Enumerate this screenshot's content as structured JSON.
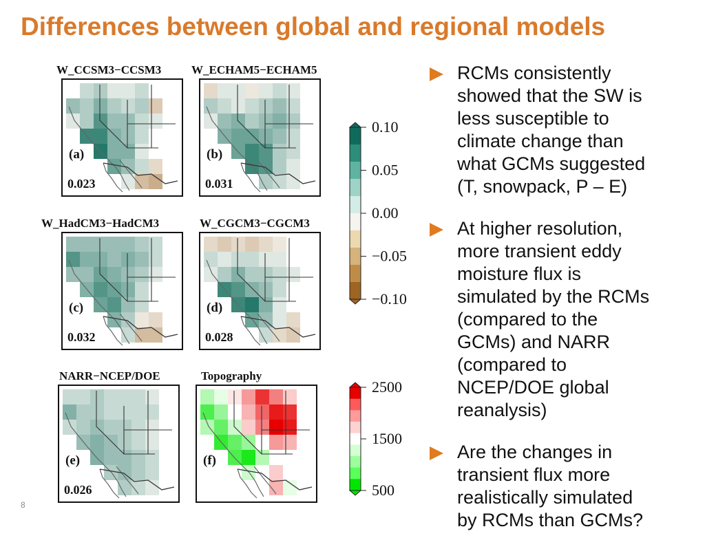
{
  "slide": {
    "title": "Differences between global and regional models",
    "page_number": "8"
  },
  "panels": [
    {
      "header": "W_CCSM3−CCSM3",
      "letter": "(a)",
      "value": "0.023",
      "palette": "diff",
      "grid": [
        [
          0,
          0.02,
          0.03,
          0.01,
          0.01,
          0.02,
          0
        ],
        [
          0.04,
          0.03,
          0.05,
          0.03,
          0.02,
          0.03,
          -0.03
        ],
        [
          0.01,
          0.03,
          0.07,
          0.04,
          0.04,
          0.02,
          0.01
        ],
        [
          0,
          0.08,
          0.08,
          0.05,
          0.04,
          0.02,
          0
        ],
        [
          0,
          0,
          0.09,
          0.05,
          0.05,
          0.01,
          0
        ],
        [
          0,
          0,
          0,
          0.06,
          0.04,
          0.02,
          -0.02
        ],
        [
          0,
          0,
          0,
          0,
          0.01,
          -0.04,
          -0.05
        ]
      ]
    },
    {
      "header": "W_ECHAM5−ECHAM5",
      "letter": "(b)",
      "value": "0.031",
      "palette": "diff",
      "grid": [
        [
          -0.02,
          0.01,
          0.01,
          -0.01,
          0.01,
          0.02,
          0.01
        ],
        [
          0.03,
          0.02,
          0.01,
          0.02,
          0.03,
          0.04,
          0.02
        ],
        [
          0.01,
          0.04,
          0.05,
          0.03,
          0.04,
          0.05,
          0.03
        ],
        [
          0,
          0.05,
          0.06,
          0.06,
          0.05,
          0.04,
          0.02
        ],
        [
          0,
          0,
          0.06,
          0.08,
          0.07,
          0.03,
          0.02
        ],
        [
          0,
          0,
          0,
          0.08,
          0.07,
          0.03,
          0.01
        ],
        [
          0,
          0,
          0,
          0,
          0.03,
          0.02,
          0.01
        ]
      ]
    },
    {
      "header": "W_HadCM3−HadCM3",
      "letter": "(c)",
      "value": "0.032",
      "palette": "diff",
      "grid": [
        [
          0.04,
          0.04,
          0.04,
          0.04,
          0.04,
          0.03,
          0.02
        ],
        [
          0.07,
          0.05,
          0.05,
          0.04,
          0.05,
          0.04,
          0.02
        ],
        [
          0.04,
          0.04,
          0.06,
          0.05,
          0.04,
          0.03,
          0.01
        ],
        [
          0,
          0.05,
          0.07,
          0.06,
          0.05,
          0.02,
          0
        ],
        [
          0,
          0,
          0.06,
          0.07,
          0.04,
          0.02,
          0
        ],
        [
          0,
          0,
          0,
          0.05,
          0.03,
          -0.01,
          -0.02
        ],
        [
          0,
          0,
          0,
          0,
          0.02,
          -0.04,
          -0.04
        ]
      ]
    },
    {
      "header": "W_CGCM3−CGCM3",
      "letter": "(d)",
      "value": "0.028",
      "palette": "diff",
      "grid": [
        [
          -0.02,
          -0.03,
          -0.02,
          -0.03,
          -0.02,
          -0.01,
          0
        ],
        [
          0.02,
          0.01,
          0.02,
          0.02,
          0.01,
          0.01,
          0
        ],
        [
          0.01,
          0.03,
          0.05,
          0.03,
          0.03,
          0.02,
          0.01
        ],
        [
          0,
          0.08,
          0.07,
          0.05,
          0.04,
          0.02,
          0
        ],
        [
          0,
          0,
          0.08,
          0.09,
          0.05,
          0.01,
          0
        ],
        [
          0,
          0,
          0,
          0.06,
          0.04,
          0.01,
          -0.02
        ],
        [
          0,
          0,
          0,
          0,
          0.02,
          -0.02,
          -0.03
        ]
      ]
    },
    {
      "header": "NARR−NCEP/DOE",
      "letter": "(e)",
      "value": "0.026",
      "palette": "diff",
      "grid": [
        [
          0.02,
          0.02,
          0.03,
          0.02,
          0.02,
          0.02,
          0.01
        ],
        [
          0.05,
          0.03,
          0.03,
          0.02,
          0.02,
          0.02,
          0.02
        ],
        [
          0.02,
          0.03,
          0.04,
          0.03,
          0.03,
          0.02,
          0.01
        ],
        [
          0,
          0.04,
          0.05,
          0.04,
          0.03,
          0.02,
          0.01
        ],
        [
          0,
          0,
          0.05,
          0.04,
          0.04,
          0.03,
          0.02
        ],
        [
          0,
          0,
          0,
          0.03,
          0.04,
          0.03,
          0.02
        ],
        [
          0,
          0,
          0,
          0,
          0.03,
          0.02,
          0.01
        ]
      ]
    },
    {
      "header": "Topography",
      "letter": "(f)",
      "value": "",
      "palette": "topo",
      "grid": [
        [
          1200,
          1400,
          1600,
          1900,
          2300,
          2000,
          1700
        ],
        [
          800,
          1100,
          1500,
          1800,
          2100,
          2400,
          2300
        ],
        [
          1200,
          900,
          1300,
          1700,
          2000,
          2500,
          2400
        ],
        [
          0,
          700,
          900,
          1100,
          1500,
          1900,
          1800
        ],
        [
          0,
          0,
          800,
          600,
          1200,
          1500,
          1500
        ],
        [
          0,
          0,
          0,
          1300,
          1500,
          1700,
          1500
        ],
        [
          0,
          0,
          0,
          0,
          1500,
          1800,
          1400
        ]
      ]
    }
  ],
  "colorbar_diff": {
    "ticks": [
      "0.10",
      "0.05",
      "0.00",
      "−0.05",
      "−0.10"
    ],
    "colors": [
      "#0e6b5b",
      "#2b8d7a",
      "#5eb3a1",
      "#9fd3c6",
      "#d3ece6",
      "#f6f4ef",
      "#ecd9b0",
      "#d6b27c",
      "#bf8c48",
      "#9d6424"
    ]
  },
  "colorbar_topo": {
    "ticks": [
      "2500",
      "1500",
      "500"
    ],
    "colors": [
      "#e60000",
      "#ff5a5a",
      "#ff9b9b",
      "#ffd2d2",
      "#ffffff",
      "#d6ffd6",
      "#9cff9c",
      "#5aff5a",
      "#00e600"
    ]
  },
  "bullets": [
    {
      "lines": [
        "RCMs consistently",
        "showed that the SW is",
        "less susceptible to",
        "climate change than",
        "what GCMs suggested",
        "(T, snowpack, P – E)"
      ]
    },
    {
      "lines": [
        "At higher resolution,",
        "more transient eddy",
        "moisture flux is",
        "simulated by the RCMs",
        "(compared to the",
        "GCMs) and NARR",
        "(compared to",
        "NCEP/DOE global",
        "reanalysis)"
      ]
    },
    {
      "lines": [
        "Are the changes in",
        "transient flux more",
        "realistically simulated",
        "by RCMs than GCMs?"
      ]
    }
  ]
}
